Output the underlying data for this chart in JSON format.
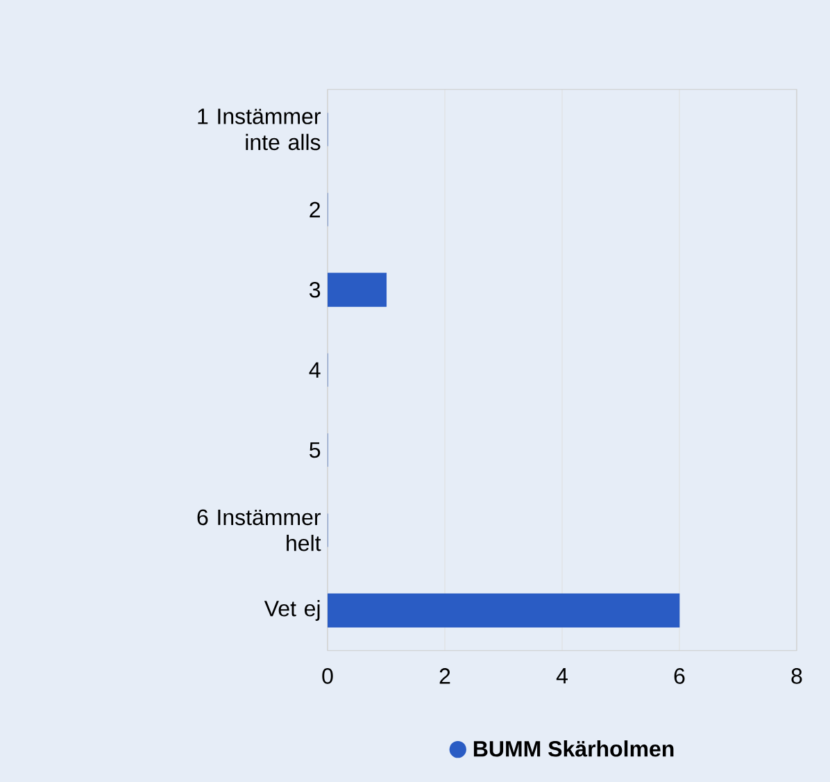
{
  "chart_data": {
    "type": "bar",
    "orientation": "horizontal",
    "categories": [
      "1 Instämmer inte alls",
      "2",
      "3",
      "4",
      "5",
      "6 Instämmer helt",
      "Vet ej"
    ],
    "series": [
      {
        "name": "BUMM Skärholmen",
        "color": "#2a5cc4",
        "values": [
          0,
          0,
          1,
          0,
          0,
          0,
          6
        ]
      }
    ],
    "xlim": [
      0,
      8
    ],
    "xticks": [
      0,
      2,
      4,
      6,
      8
    ],
    "grid": "x",
    "legend": "bottom"
  }
}
